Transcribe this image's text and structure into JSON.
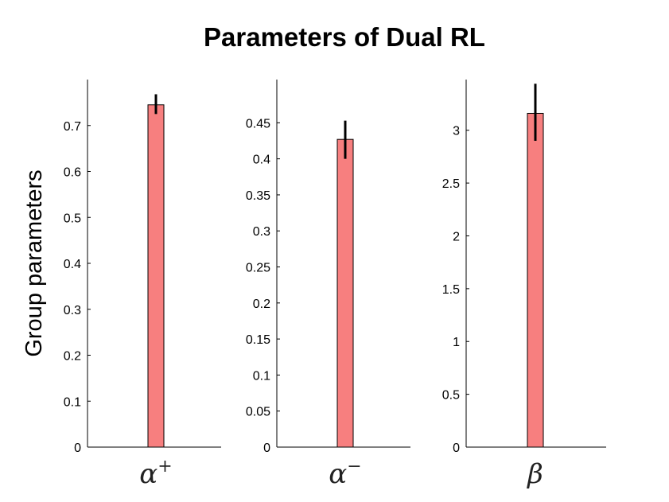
{
  "chart_data": {
    "title": "Parameters of Dual RL",
    "ylabel": "Group parameters",
    "bar_color": "#f77f7f",
    "error_color": "#000000",
    "type": "bar",
    "panels": [
      {
        "category": "α",
        "category_sup": "+",
        "value": 0.745,
        "error_low": 0.725,
        "error_high": 0.768,
        "ylim": [
          0,
          0.8
        ],
        "yticks": [
          0,
          0.1,
          0.2,
          0.3,
          0.4,
          0.5,
          0.6,
          0.7
        ],
        "ytick_labels": [
          "0",
          "0.1",
          "0.2",
          "0.3",
          "0.4",
          "0.5",
          "0.6",
          "0.7"
        ]
      },
      {
        "category": "α",
        "category_sup": "−",
        "value": 0.427,
        "error_low": 0.4,
        "error_high": 0.453,
        "ylim": [
          0,
          0.51
        ],
        "yticks": [
          0,
          0.05,
          0.1,
          0.15,
          0.2,
          0.25,
          0.3,
          0.35,
          0.4,
          0.45
        ],
        "ytick_labels": [
          "0",
          "0.05",
          "0.1",
          "0.15",
          "0.2",
          "0.25",
          "0.3",
          "0.35",
          "0.4",
          "0.45"
        ]
      },
      {
        "category": "β",
        "category_sup": "",
        "value": 3.16,
        "error_low": 2.9,
        "error_high": 3.44,
        "ylim": [
          0,
          3.48
        ],
        "yticks": [
          0,
          0.5,
          1,
          1.5,
          2,
          2.5,
          3
        ],
        "ytick_labels": [
          "0",
          "0.5",
          "1",
          "1.5",
          "2",
          "2.5",
          "3"
        ]
      }
    ]
  }
}
